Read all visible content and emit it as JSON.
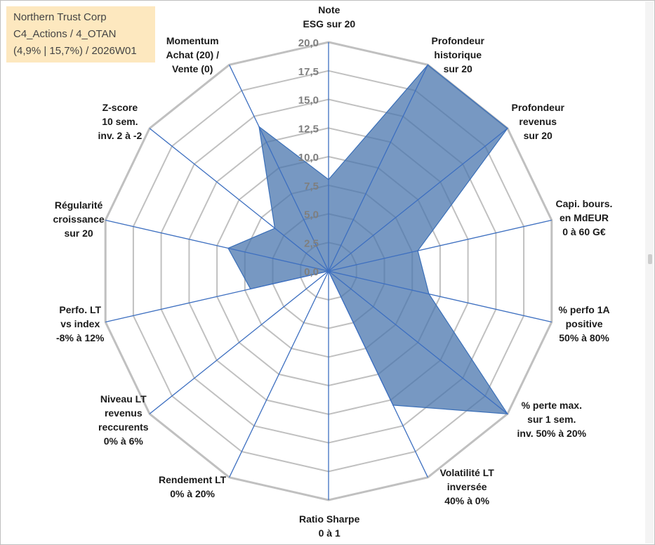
{
  "header": {
    "lines": [
      "Northern Trust Corp",
      "C4_Actions / 4_OTAN",
      "(4,9% | 15,7%) / 2026W01"
    ]
  },
  "colors": {
    "fill": "#4a76ad",
    "stroke": "#3a6fb8",
    "spokes": "#3d6fc0",
    "rings": "#c0c0c0",
    "tick_text": "#7f7f7f",
    "title_bg": "#fde8bf"
  },
  "chart_data": {
    "type": "radar",
    "rmax": 20,
    "ticks": [
      "0,0",
      "2,5",
      "5,0",
      "7,5",
      "10,0",
      "12,5",
      "15,0",
      "17,5",
      "20,0"
    ],
    "axes": [
      {
        "label": [
          "Note",
          "ESG sur 20"
        ],
        "value": 8
      },
      {
        "label": [
          "Profondeur",
          "historique",
          "sur 20"
        ],
        "value": 20
      },
      {
        "label": [
          "Profondeur",
          "revenus",
          "sur 20"
        ],
        "value": 20
      },
      {
        "label": [
          "Capi. bours.",
          "en MdEUR",
          "0 à 60 G€"
        ],
        "value": 8
      },
      {
        "label": [
          "% perfo 1A",
          "positive",
          "50% à 80%"
        ],
        "value": 9
      },
      {
        "label": [
          "% perte max.",
          "sur 1 sem.",
          "inv. 50% à 20%"
        ],
        "value": 20
      },
      {
        "label": [
          "Volatilité LT",
          "inversée",
          "40% à 0%"
        ],
        "value": 13
      },
      {
        "label": [
          "Ratio Sharpe",
          "0 à 1"
        ],
        "value": 0
      },
      {
        "label": [
          "Rendement LT",
          "0% à 20%"
        ],
        "value": 0
      },
      {
        "label": [
          "Niveau LT",
          "revenus",
          "reccurents",
          "0% à 6%"
        ],
        "value": 0
      },
      {
        "label": [
          "Perfo. LT",
          "vs index",
          "-8% à 12%"
        ],
        "value": 7
      },
      {
        "label": [
          "Régularité",
          "croissance",
          "sur 20"
        ],
        "value": 9
      },
      {
        "label": [
          "Z-score",
          "10 sem.",
          "inv. 2 à -2"
        ],
        "value": 6
      },
      {
        "label": [
          "Momentum",
          "Achat (20) /",
          "Vente (0)"
        ],
        "value": 14
      }
    ],
    "grid": true,
    "legend": "none"
  }
}
